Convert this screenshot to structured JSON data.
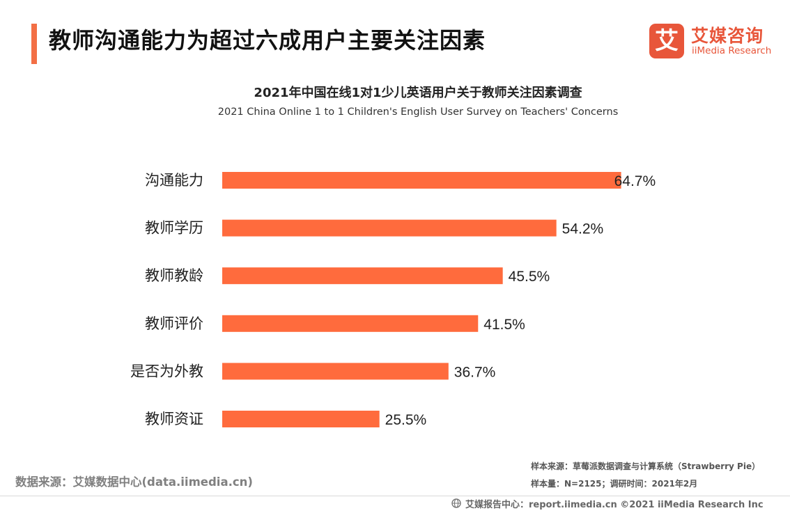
{
  "header": {
    "title": "教师沟通能力为超过六成用户主要关注因素",
    "logo_cn": "艾媒咨询",
    "logo_en": "iiMedia Research",
    "logo_glyph": "艾"
  },
  "chart_data": {
    "type": "bar",
    "orientation": "horizontal",
    "title": "2021年中国在线1对1少儿英语用户关于教师关注因素调查",
    "subtitle": "2021 China Online 1 to 1 Children's English User Survey on Teachers' Concerns",
    "categories": [
      "沟通能力",
      "教师学历",
      "教师教龄",
      "教师评价",
      "是否为外教",
      "教师资证"
    ],
    "values": [
      64.7,
      54.2,
      45.5,
      41.5,
      36.7,
      25.5
    ],
    "value_labels": [
      "64.7%",
      "54.2%",
      "45.5%",
      "41.5%",
      "36.7%",
      "25.5%"
    ],
    "unit": "%",
    "bar_color": "#ff6b3d",
    "xlim": [
      0,
      100
    ],
    "grid": false,
    "legend": "none"
  },
  "footer": {
    "source_left": "数据来源：艾媒数据中心(data.iimedia.cn)",
    "sample_source": "样本来源：草莓派数据调查与计算系统（Strawberry Pie）",
    "sample_info": "样本量：N=2125；调研时间：2021年2月",
    "copyright": "艾媒报告中心：report.iimedia.cn   ©2021  iiMedia Research  Inc"
  },
  "colors": {
    "accent": "#f36f45",
    "brand": "#e8563a"
  },
  "icons": [
    "globe-icon"
  ]
}
